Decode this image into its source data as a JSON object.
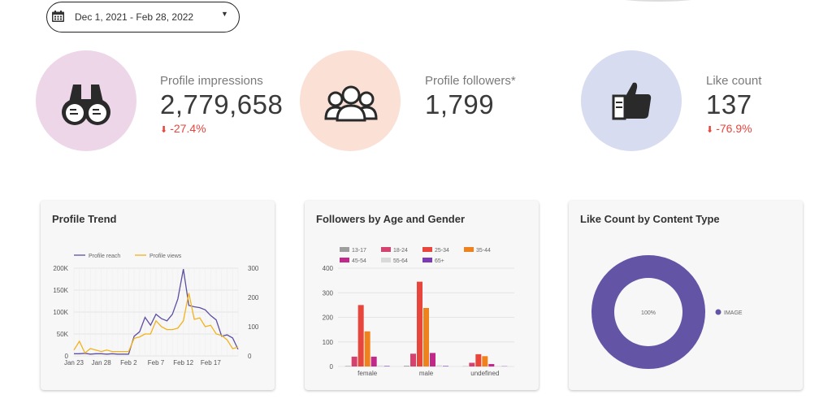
{
  "date_range": {
    "label": "Dec 1, 2021 - Feb 28, 2022"
  },
  "kpis": [
    {
      "label": "Profile impressions",
      "value": "2,779,658",
      "delta": "-27.4%",
      "color": "#eed6e9",
      "icon": "binoculars-icon"
    },
    {
      "label": "Profile followers*",
      "value": "1,799",
      "delta": "",
      "color": "#fbe0d6",
      "icon": "group-icon"
    },
    {
      "label": "Like count",
      "value": "137",
      "delta": "-76.9%",
      "color": "#d7dcf0",
      "icon": "thumbs-up-icon"
    }
  ],
  "colors": {
    "negative": "#e8453c",
    "reach": "#5c4fa3",
    "views": "#f2b21b",
    "donut": "#6354a6"
  },
  "chart_data": [
    {
      "type": "line",
      "title": "Profile Trend",
      "legend": [
        "Profile reach",
        "Profile views"
      ],
      "x_ticks": [
        "Jan 23",
        "Jan 28",
        "Feb 2",
        "Feb 7",
        "Feb 12",
        "Feb 17"
      ],
      "y_left_ticks": [
        "0",
        "50K",
        "100K",
        "150K",
        "200K"
      ],
      "y_right_ticks": [
        "0",
        "100",
        "200",
        "300"
      ],
      "ylim_left": [
        0,
        200000
      ],
      "ylim_right": [
        0,
        300
      ],
      "n_points": 31,
      "series": [
        {
          "name": "Profile reach",
          "axis": "left",
          "values": [
            5000,
            5000,
            6000,
            4000,
            5000,
            5000,
            4000,
            5000,
            4000,
            4000,
            4000,
            45000,
            55000,
            88000,
            70000,
            95000,
            85000,
            80000,
            95000,
            130000,
            198000,
            115000,
            112000,
            110000,
            105000,
            92000,
            82000,
            45000,
            48000,
            41000,
            15000
          ]
        },
        {
          "name": "Profile views",
          "axis": "right",
          "values": [
            20,
            50,
            10,
            25,
            20,
            15,
            20,
            15,
            15,
            15,
            15,
            60,
            65,
            75,
            75,
            120,
            100,
            90,
            90,
            95,
            120,
            215,
            125,
            130,
            100,
            105,
            75,
            70,
            55,
            25,
            30
          ]
        }
      ]
    },
    {
      "type": "bar",
      "title": "Followers by Age and Gender",
      "categories": [
        "female",
        "male",
        "undefined"
      ],
      "y_ticks": [
        "0",
        "100",
        "200",
        "300",
        "400"
      ],
      "ylim": [
        0,
        400
      ],
      "series": [
        {
          "name": "13-17",
          "color": "#9e9e9e",
          "values": [
            2,
            3,
            1
          ]
        },
        {
          "name": "18-24",
          "color": "#d6426f",
          "values": [
            40,
            52,
            15
          ]
        },
        {
          "name": "25-34",
          "color": "#e8453c",
          "values": [
            250,
            345,
            50
          ]
        },
        {
          "name": "35-44",
          "color": "#f0821e",
          "values": [
            143,
            238,
            42
          ]
        },
        {
          "name": "45-54",
          "color": "#c2288a",
          "values": [
            40,
            55,
            10
          ]
        },
        {
          "name": "55-64",
          "color": "#d9d9d9",
          "values": [
            4,
            5,
            2
          ]
        },
        {
          "name": "65+",
          "color": "#7e3ab5",
          "values": [
            2,
            2,
            1
          ]
        }
      ]
    },
    {
      "type": "pie",
      "title": "Like Count by Content Type",
      "slices": [
        {
          "label": "IMAGE",
          "value": 100,
          "pct_label": "100%",
          "color": "#6354a6"
        }
      ]
    }
  ]
}
